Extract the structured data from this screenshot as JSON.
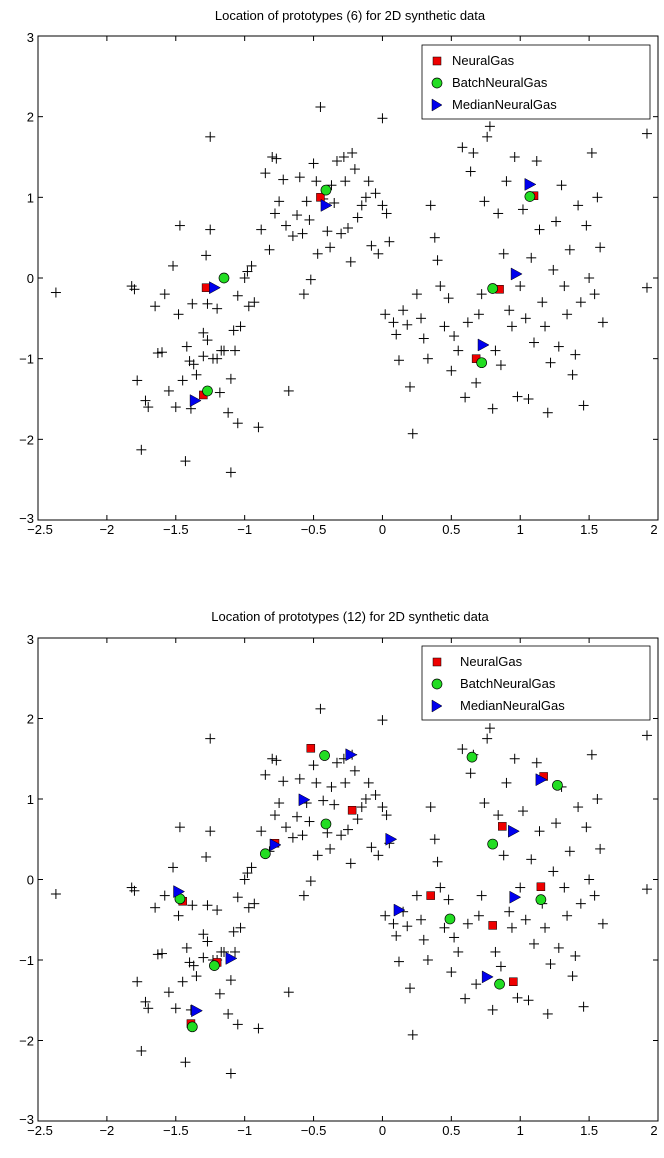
{
  "chart_data": [
    {
      "type": "scatter",
      "title": "Location of prototypes (6) for 2D synthetic data",
      "xlabel": "",
      "ylabel": "",
      "xlim": [
        -2.5,
        2
      ],
      "ylim": [
        -3,
        3
      ],
      "xticks": [
        -2.5,
        -2,
        -1.5,
        -1,
        -0.5,
        0,
        0.5,
        1,
        1.5,
        2
      ],
      "yticks": [
        -3,
        -2,
        -1,
        0,
        1,
        2,
        3
      ],
      "xtick_labels": [
        "−2.5",
        "−2",
        "−1.5",
        "−1",
        "−0.5",
        "0",
        "0.5",
        "1",
        "1.5",
        "2"
      ],
      "ytick_labels": [
        "−3",
        "−2",
        "−1",
        "0",
        "1",
        "2",
        "3"
      ],
      "grid": false,
      "legend_position": "top-right",
      "series": [
        {
          "name": "",
          "marker": "plus",
          "color": "#000000",
          "points": "data"
        },
        {
          "name": "NeuralGas",
          "marker": "square",
          "color": "#ee0000",
          "points": [
            [
              -1.28,
              -0.12
            ],
            [
              -1.3,
              -1.45
            ],
            [
              -0.45,
              1.0
            ],
            [
              0.68,
              -1.0
            ],
            [
              0.85,
              -0.14
            ],
            [
              1.1,
              1.02
            ]
          ]
        },
        {
          "name": "BatchNeuralGas",
          "marker": "circle",
          "color": "#22dd22",
          "points": [
            [
              -1.15,
              0.0
            ],
            [
              -1.27,
              -1.4
            ],
            [
              -0.41,
              1.09
            ],
            [
              0.72,
              -1.05
            ],
            [
              0.8,
              -0.13
            ],
            [
              1.07,
              1.01
            ]
          ]
        },
        {
          "name": "MedianNeuralGas",
          "marker": "triangle-right",
          "color": "#0000ee",
          "points": [
            [
              -1.22,
              -0.12
            ],
            [
              -1.36,
              -1.52
            ],
            [
              -0.41,
              0.9
            ],
            [
              0.73,
              -0.83
            ],
            [
              0.97,
              0.05
            ],
            [
              1.07,
              1.16
            ]
          ]
        }
      ]
    },
    {
      "type": "scatter",
      "title": "Location of prototypes (12) for 2D synthetic data",
      "xlabel": "",
      "ylabel": "",
      "xlim": [
        -2.5,
        2
      ],
      "ylim": [
        -3,
        3
      ],
      "xticks": [
        -2.5,
        -2,
        -1.5,
        -1,
        -0.5,
        0,
        0.5,
        1,
        1.5,
        2
      ],
      "yticks": [
        -3,
        -2,
        -1,
        0,
        1,
        2,
        3
      ],
      "xtick_labels": [
        "−2.5",
        "−2",
        "−1.5",
        "−1",
        "−0.5",
        "0",
        "0.5",
        "1",
        "1.5",
        "2"
      ],
      "ytick_labels": [
        "−3",
        "−2",
        "−1",
        "0",
        "1",
        "2",
        "3"
      ],
      "grid": false,
      "legend_position": "top-right",
      "series": [
        {
          "name": "",
          "marker": "plus",
          "color": "#000000",
          "points": "data"
        },
        {
          "name": "NeuralGas",
          "marker": "square",
          "color": "#ee0000",
          "points": [
            [
              -1.45,
              -0.27
            ],
            [
              -1.2,
              -1.03
            ],
            [
              -1.39,
              -1.79
            ],
            [
              -0.78,
              0.45
            ],
            [
              -0.52,
              1.63
            ],
            [
              -0.22,
              0.86
            ],
            [
              0.35,
              -0.2
            ],
            [
              0.8,
              -0.57
            ],
            [
              0.87,
              0.66
            ],
            [
              0.95,
              -1.27
            ],
            [
              1.15,
              -0.09
            ],
            [
              1.17,
              1.28
            ]
          ]
        },
        {
          "name": "BatchNeuralGas",
          "marker": "circle",
          "color": "#22dd22",
          "points": [
            [
              -1.47,
              -0.24
            ],
            [
              -1.22,
              -1.07
            ],
            [
              -1.38,
              -1.83
            ],
            [
              -0.85,
              0.32
            ],
            [
              -0.42,
              1.54
            ],
            [
              -0.41,
              0.69
            ],
            [
              0.49,
              -0.49
            ],
            [
              0.65,
              1.52
            ],
            [
              0.8,
              0.44
            ],
            [
              0.85,
              -1.3
            ],
            [
              1.15,
              -0.25
            ],
            [
              1.27,
              1.17
            ]
          ]
        },
        {
          "name": "MedianNeuralGas",
          "marker": "triangle-right",
          "color": "#0000ee",
          "points": [
            [
              -1.48,
              -0.15
            ],
            [
              -1.1,
              -0.98
            ],
            [
              -1.35,
              -1.63
            ],
            [
              -0.78,
              0.43
            ],
            [
              -0.57,
              0.99
            ],
            [
              -0.23,
              1.55
            ],
            [
              0.06,
              0.5
            ],
            [
              0.12,
              -0.38
            ],
            [
              0.76,
              -1.21
            ],
            [
              0.95,
              0.6
            ],
            [
              0.96,
              -0.22
            ],
            [
              1.15,
              1.24
            ]
          ]
        }
      ]
    }
  ],
  "data_points": [
    [
      -2.37,
      -0.18
    ],
    [
      -1.82,
      -0.1
    ],
    [
      -1.8,
      -0.14
    ],
    [
      -1.78,
      -1.27
    ],
    [
      -1.75,
      -2.13
    ],
    [
      -1.72,
      -1.52
    ],
    [
      -1.7,
      -1.6
    ],
    [
      -1.65,
      -0.35
    ],
    [
      -1.63,
      -0.93
    ],
    [
      -1.6,
      -0.92
    ],
    [
      -1.58,
      -0.2
    ],
    [
      -1.55,
      -1.4
    ],
    [
      -1.52,
      0.15
    ],
    [
      -1.5,
      -1.6
    ],
    [
      -1.48,
      -0.45
    ],
    [
      -1.47,
      0.65
    ],
    [
      -1.45,
      -1.27
    ],
    [
      -1.43,
      -2.27
    ],
    [
      -1.42,
      -0.85
    ],
    [
      -1.4,
      -1.03
    ],
    [
      -1.39,
      -1.62
    ],
    [
      -1.38,
      -0.32
    ],
    [
      -1.37,
      -1.07
    ],
    [
      -1.35,
      -1.2
    ],
    [
      -1.3,
      -0.68
    ],
    [
      -1.3,
      -0.97
    ],
    [
      -1.28,
      0.28
    ],
    [
      -1.27,
      -0.32
    ],
    [
      -1.27,
      -0.77
    ],
    [
      -1.25,
      1.75
    ],
    [
      -1.25,
      0.6
    ],
    [
      -1.23,
      -1.0
    ],
    [
      -1.2,
      -1.0
    ],
    [
      -1.2,
      -0.38
    ],
    [
      -1.18,
      -1.42
    ],
    [
      -1.17,
      -0.9
    ],
    [
      -1.15,
      -0.9
    ],
    [
      -1.12,
      -1.67
    ],
    [
      -1.1,
      -2.41
    ],
    [
      -1.1,
      -1.25
    ],
    [
      -1.08,
      -0.65
    ],
    [
      -1.07,
      -0.9
    ],
    [
      -1.05,
      -1.8
    ],
    [
      -1.05,
      -0.22
    ],
    [
      -1.03,
      -0.6
    ],
    [
      -1.0,
      0.0
    ],
    [
      -0.98,
      0.08
    ],
    [
      -0.97,
      -0.35
    ],
    [
      -0.95,
      0.15
    ],
    [
      -0.93,
      -0.3
    ],
    [
      -0.9,
      -1.85
    ],
    [
      -0.88,
      0.6
    ],
    [
      -0.85,
      1.3
    ],
    [
      -0.82,
      0.35
    ],
    [
      -0.8,
      1.5
    ],
    [
      -0.78,
      0.8
    ],
    [
      -0.77,
      1.48
    ],
    [
      -0.75,
      0.95
    ],
    [
      -0.72,
      1.22
    ],
    [
      -0.7,
      0.65
    ],
    [
      -0.68,
      -1.4
    ],
    [
      -0.65,
      0.52
    ],
    [
      -0.62,
      0.78
    ],
    [
      -0.6,
      1.25
    ],
    [
      -0.58,
      0.55
    ],
    [
      -0.57,
      -0.2
    ],
    [
      -0.55,
      0.95
    ],
    [
      -0.53,
      0.72
    ],
    [
      -0.52,
      -0.02
    ],
    [
      -0.5,
      1.42
    ],
    [
      -0.48,
      1.2
    ],
    [
      -0.47,
      0.3
    ],
    [
      -0.45,
      2.12
    ],
    [
      -0.43,
      0.98
    ],
    [
      -0.4,
      0.58
    ],
    [
      -0.38,
      0.38
    ],
    [
      -0.37,
      1.15
    ],
    [
      -0.35,
      0.93
    ],
    [
      -0.33,
      1.45
    ],
    [
      -0.3,
      0.55
    ],
    [
      -0.28,
      1.5
    ],
    [
      -0.27,
      1.2
    ],
    [
      -0.25,
      0.62
    ],
    [
      -0.23,
      0.2
    ],
    [
      -0.22,
      1.55
    ],
    [
      -0.2,
      1.35
    ],
    [
      -0.18,
      0.75
    ],
    [
      -0.15,
      0.9
    ],
    [
      -0.12,
      1.0
    ],
    [
      -0.1,
      1.2
    ],
    [
      -0.08,
      0.4
    ],
    [
      -0.05,
      1.05
    ],
    [
      -0.03,
      0.3
    ],
    [
      0.0,
      0.9
    ],
    [
      0.0,
      1.98
    ],
    [
      0.02,
      -0.45
    ],
    [
      0.03,
      0.8
    ],
    [
      0.05,
      0.45
    ],
    [
      0.08,
      -0.55
    ],
    [
      0.1,
      -0.7
    ],
    [
      0.12,
      -1.02
    ],
    [
      0.15,
      -0.4
    ],
    [
      0.18,
      -0.58
    ],
    [
      0.2,
      -1.35
    ],
    [
      0.22,
      -1.93
    ],
    [
      0.25,
      -0.2
    ],
    [
      0.28,
      -0.5
    ],
    [
      0.3,
      -0.75
    ],
    [
      0.33,
      -1.0
    ],
    [
      0.35,
      0.9
    ],
    [
      0.38,
      0.5
    ],
    [
      0.4,
      0.22
    ],
    [
      0.42,
      -0.1
    ],
    [
      0.45,
      -0.6
    ],
    [
      0.48,
      -0.25
    ],
    [
      0.5,
      -1.15
    ],
    [
      0.52,
      -0.72
    ],
    [
      0.55,
      -0.9
    ],
    [
      0.58,
      1.62
    ],
    [
      0.6,
      -1.48
    ],
    [
      0.62,
      -0.55
    ],
    [
      0.64,
      1.32
    ],
    [
      0.66,
      1.55
    ],
    [
      0.68,
      -1.3
    ],
    [
      0.7,
      -0.45
    ],
    [
      0.72,
      -0.2
    ],
    [
      0.74,
      0.95
    ],
    [
      0.76,
      1.75
    ],
    [
      0.78,
      1.88
    ],
    [
      0.8,
      -1.62
    ],
    [
      0.82,
      -0.9
    ],
    [
      0.84,
      0.8
    ],
    [
      0.86,
      -1.08
    ],
    [
      0.88,
      0.3
    ],
    [
      0.9,
      1.2
    ],
    [
      0.92,
      -0.4
    ],
    [
      0.94,
      -0.6
    ],
    [
      0.96,
      1.5
    ],
    [
      0.98,
      -1.47
    ],
    [
      1.0,
      -0.1
    ],
    [
      1.02,
      0.85
    ],
    [
      1.04,
      -0.5
    ],
    [
      1.06,
      -1.5
    ],
    [
      1.08,
      0.25
    ],
    [
      1.1,
      -0.8
    ],
    [
      1.12,
      1.45
    ],
    [
      1.14,
      0.6
    ],
    [
      1.16,
      -0.3
    ],
    [
      1.18,
      -0.6
    ],
    [
      1.2,
      -1.67
    ],
    [
      1.22,
      -1.05
    ],
    [
      1.24,
      0.1
    ],
    [
      1.26,
      0.7
    ],
    [
      1.28,
      -0.85
    ],
    [
      1.3,
      1.15
    ],
    [
      1.32,
      -0.1
    ],
    [
      1.34,
      -0.45
    ],
    [
      1.36,
      0.35
    ],
    [
      1.38,
      -1.2
    ],
    [
      1.4,
      -0.95
    ],
    [
      1.42,
      0.9
    ],
    [
      1.44,
      -0.3
    ],
    [
      1.46,
      -1.58
    ],
    [
      1.48,
      0.65
    ],
    [
      1.5,
      0.0
    ],
    [
      1.52,
      1.55
    ],
    [
      1.54,
      -0.2
    ],
    [
      1.56,
      1.0
    ],
    [
      1.58,
      0.38
    ],
    [
      1.6,
      -0.55
    ],
    [
      1.92,
      -0.12
    ],
    [
      1.92,
      1.79
    ]
  ]
}
